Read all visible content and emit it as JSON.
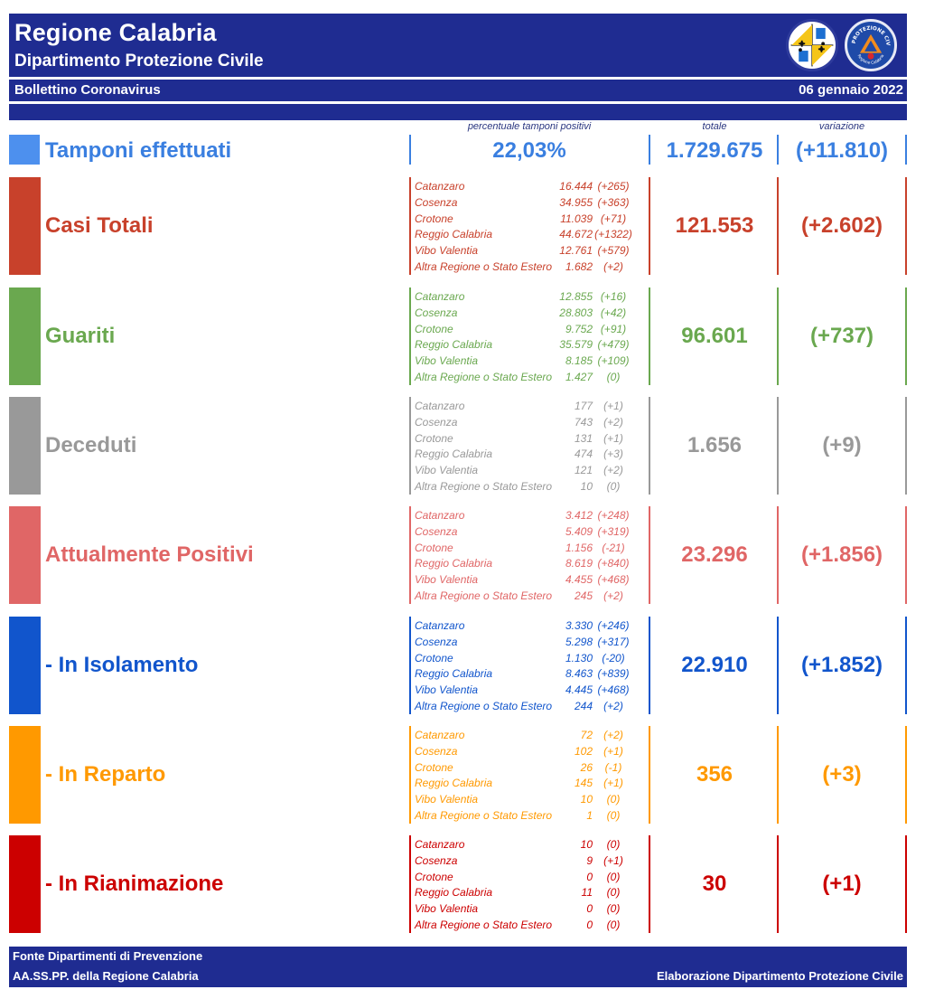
{
  "header": {
    "title": "Regione Calabria",
    "subtitle": "Dipartimento Protezione Civile",
    "logo_left": "regione-calabria-coat-of-arms",
    "logo_right": "protezione-civile-logo",
    "logo_right_text": "PROTEZIONE CIVILE Regione Calabria"
  },
  "bulletin": {
    "title": "Bollettino Coronavirus",
    "date": "06 gennaio 2022"
  },
  "columns": {
    "percent": "percentuale tamponi positivi",
    "total": "totale",
    "change": "variazione"
  },
  "tamponi": {
    "label": "Tamponi effettuati",
    "percent": "22,03%",
    "total": "1.729.675",
    "change": "(+11.810)",
    "color": "#3a7fe0"
  },
  "sections": [
    {
      "label": "Casi Totali",
      "total": "121.553",
      "change": "(+2.602)",
      "color": "#c8412b",
      "rows": [
        {
          "province": "Catanzaro",
          "value": "16.444",
          "delta": "(+265)"
        },
        {
          "province": "Cosenza",
          "value": "34.955",
          "delta": "(+363)"
        },
        {
          "province": "Crotone",
          "value": "11.039",
          "delta": "(+71)"
        },
        {
          "province": "Reggio Calabria",
          "value": "44.672",
          "delta": "(+1322)"
        },
        {
          "province": "Vibo Valentia",
          "value": "12.761",
          "delta": "(+579)"
        },
        {
          "province": "Altra Regione o Stato Estero",
          "value": "1.682",
          "delta": "(+2)"
        }
      ]
    },
    {
      "label": "Guariti",
      "total": "96.601",
      "change": "(+737)",
      "color": "#6aa84f",
      "rows": [
        {
          "province": "Catanzaro",
          "value": "12.855",
          "delta": "(+16)"
        },
        {
          "province": "Cosenza",
          "value": "28.803",
          "delta": "(+42)"
        },
        {
          "province": "Crotone",
          "value": "9.752",
          "delta": "(+91)"
        },
        {
          "province": "Reggio Calabria",
          "value": "35.579",
          "delta": "(+479)"
        },
        {
          "province": "Vibo Valentia",
          "value": "8.185",
          "delta": "(+109)"
        },
        {
          "province": "Altra Regione o Stato Estero",
          "value": "1.427",
          "delta": "(0)"
        }
      ]
    },
    {
      "label": "Deceduti",
      "total": "1.656",
      "change": "(+9)",
      "color": "#999999",
      "rows": [
        {
          "province": "Catanzaro",
          "value": "177",
          "delta": "(+1)"
        },
        {
          "province": "Cosenza",
          "value": "743",
          "delta": "(+2)"
        },
        {
          "province": "Crotone",
          "value": "131",
          "delta": "(+1)"
        },
        {
          "province": "Reggio Calabria",
          "value": "474",
          "delta": "(+3)"
        },
        {
          "province": "Vibo Valentia",
          "value": "121",
          "delta": "(+2)"
        },
        {
          "province": "Altra Regione o Stato Estero",
          "value": "10",
          "delta": "(0)"
        }
      ]
    },
    {
      "label": "Attualmente Positivi",
      "total": "23.296",
      "change": "(+1.856)",
      "color": "#e06666",
      "rows": [
        {
          "province": "Catanzaro",
          "value": "3.412",
          "delta": "(+248)"
        },
        {
          "province": "Cosenza",
          "value": "5.409",
          "delta": "(+319)"
        },
        {
          "province": "Crotone",
          "value": "1.156",
          "delta": "(-21)"
        },
        {
          "province": "Reggio Calabria",
          "value": "8.619",
          "delta": "(+840)"
        },
        {
          "province": "Vibo Valentia",
          "value": "4.455",
          "delta": "(+468)"
        },
        {
          "province": "Altra Regione o Stato Estero",
          "value": "245",
          "delta": "(+2)"
        }
      ]
    },
    {
      "label": "- In Isolamento",
      "total": "22.910",
      "change": "(+1.852)",
      "color": "#1155cc",
      "rows": [
        {
          "province": "Catanzaro",
          "value": "3.330",
          "delta": "(+246)"
        },
        {
          "province": "Cosenza",
          "value": "5.298",
          "delta": "(+317)"
        },
        {
          "province": "Crotone",
          "value": "1.130",
          "delta": "(-20)"
        },
        {
          "province": "Reggio Calabria",
          "value": "8.463",
          "delta": "(+839)"
        },
        {
          "province": "Vibo Valentia",
          "value": "4.445",
          "delta": "(+468)"
        },
        {
          "province": "Altra Regione o Stato Estero",
          "value": "244",
          "delta": "(+2)"
        }
      ]
    },
    {
      "label": "- In Reparto",
      "total": "356",
      "change": "(+3)",
      "color": "#ff9900",
      "rows": [
        {
          "province": "Catanzaro",
          "value": "72",
          "delta": "(+2)"
        },
        {
          "province": "Cosenza",
          "value": "102",
          "delta": "(+1)"
        },
        {
          "province": "Crotone",
          "value": "26",
          "delta": "(-1)"
        },
        {
          "province": "Reggio Calabria",
          "value": "145",
          "delta": "(+1)"
        },
        {
          "province": "Vibo Valentia",
          "value": "10",
          "delta": "(0)"
        },
        {
          "province": "Altra Regione o Stato Estero",
          "value": "1",
          "delta": "(0)"
        }
      ]
    },
    {
      "label": "- In Rianimazione",
      "total": "30",
      "change": "(+1)",
      "color": "#cc0000",
      "rows": [
        {
          "province": "Catanzaro",
          "value": "10",
          "delta": "(0)"
        },
        {
          "province": "Cosenza",
          "value": "9",
          "delta": "(+1)"
        },
        {
          "province": "Crotone",
          "value": "0",
          "delta": "(0)"
        },
        {
          "province": "Reggio Calabria",
          "value": "11",
          "delta": "(0)"
        },
        {
          "province": "Vibo Valentia",
          "value": "0",
          "delta": "(0)"
        },
        {
          "province": "Altra Regione o Stato Estero",
          "value": "0",
          "delta": "(0)"
        }
      ]
    }
  ],
  "footer": {
    "source_line1": "Fonte Dipartimenti di Prevenzione",
    "source_line2": "AA.SS.PP.  della Regione Calabria",
    "credit": "Elaborazione Dipartimento Protezione Civile"
  }
}
